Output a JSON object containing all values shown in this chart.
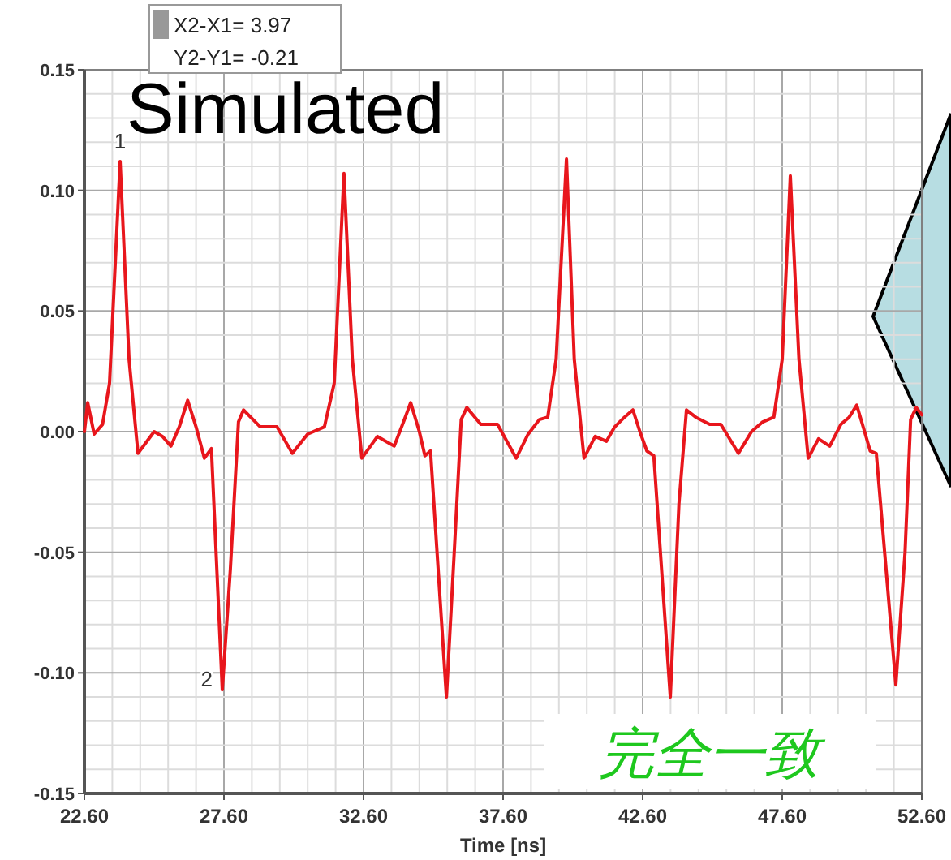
{
  "chart_data": {
    "type": "line",
    "title": "Simulated",
    "xlabel": "Time [ns]",
    "annotations": [
      "X2-X1= 3.97",
      "Y2-Y1= -0.21",
      "完全一致",
      {
        "text": "1",
        "x": 23.88,
        "y": 0.112
      },
      {
        "text": "2",
        "x": 27.54,
        "y": -0.107
      }
    ],
    "x": [
      22.6,
      22.72,
      22.95,
      23.25,
      23.5,
      23.88,
      24.2,
      24.52,
      25.1,
      25.4,
      25.7,
      26.0,
      26.3,
      26.6,
      26.9,
      27.15,
      27.54,
      27.83,
      28.12,
      28.3,
      28.9,
      29.5,
      30.05,
      30.6,
      31.2,
      31.55,
      31.9,
      32.2,
      32.54,
      33.1,
      33.4,
      33.7,
      34.0,
      34.29,
      34.6,
      34.8,
      35.0,
      35.57,
      35.85,
      36.1,
      36.3,
      36.8,
      37.4,
      38.07,
      38.5,
      38.9,
      39.2,
      39.5,
      39.87,
      40.15,
      40.5,
      40.9,
      41.3,
      41.6,
      41.95,
      42.25,
      42.5,
      42.75,
      43.0,
      43.59,
      43.9,
      44.17,
      44.5,
      45.0,
      45.4,
      46.03,
      46.5,
      46.9,
      47.3,
      47.6,
      47.89,
      48.2,
      48.53,
      48.9,
      49.3,
      49.7,
      50.0,
      50.27,
      50.55,
      50.75,
      50.97,
      51.67,
      52.0,
      52.2,
      52.4,
      52.6
    ],
    "series": [
      {
        "color": "#e8161c",
        "values": [
          0.0,
          0.012,
          -0.001,
          0.003,
          0.02,
          0.112,
          0.03,
          -0.009,
          0.0,
          -0.002,
          -0.006,
          0.002,
          0.013,
          0.002,
          -0.011,
          -0.007,
          -0.107,
          -0.057,
          0.004,
          0.009,
          0.002,
          0.002,
          -0.009,
          -0.001,
          0.002,
          0.02,
          0.107,
          0.03,
          -0.011,
          -0.002,
          -0.004,
          -0.006,
          0.003,
          0.012,
          0.0,
          -0.01,
          -0.008,
          -0.11,
          -0.05,
          0.005,
          0.01,
          0.003,
          0.003,
          -0.011,
          -0.001,
          0.005,
          0.006,
          0.03,
          0.113,
          0.03,
          -0.011,
          -0.002,
          -0.004,
          0.002,
          0.006,
          0.009,
          0.0,
          -0.008,
          -0.01,
          -0.11,
          -0.03,
          0.009,
          0.006,
          0.003,
          0.003,
          -0.009,
          0.0,
          0.004,
          0.006,
          0.03,
          0.106,
          0.03,
          -0.011,
          -0.003,
          -0.006,
          0.003,
          0.006,
          0.011,
          0.0,
          -0.008,
          -0.009,
          -0.105,
          -0.05,
          0.005,
          0.01,
          0.007
        ]
      }
    ],
    "xlim": [
      22.6,
      52.6
    ],
    "xticks": [
      {
        "value": 22.6,
        "label": "22.60"
      },
      {
        "value": 27.6,
        "label": "27.60"
      },
      {
        "value": 32.6,
        "label": "32.60"
      },
      {
        "value": 37.6,
        "label": "37.60"
      },
      {
        "value": 42.6,
        "label": "42.60"
      },
      {
        "value": 47.6,
        "label": "47.60"
      },
      {
        "value": 52.6,
        "label": "52.60"
      }
    ],
    "ylim": [
      -0.15,
      0.15
    ],
    "yticks": [
      {
        "value": -0.15,
        "label": "-0.15"
      },
      {
        "value": -0.1,
        "label": "-0.10"
      },
      {
        "value": -0.05,
        "label": "-0.05"
      },
      {
        "value": 0,
        "label": "0.00"
      },
      {
        "value": 0.05,
        "label": "0.05"
      },
      {
        "value": 0.1,
        "label": "0.10"
      },
      {
        "value": 0.15,
        "label": "0.15"
      }
    ],
    "grid": true,
    "marker": "none",
    "line_style": "solid"
  }
}
